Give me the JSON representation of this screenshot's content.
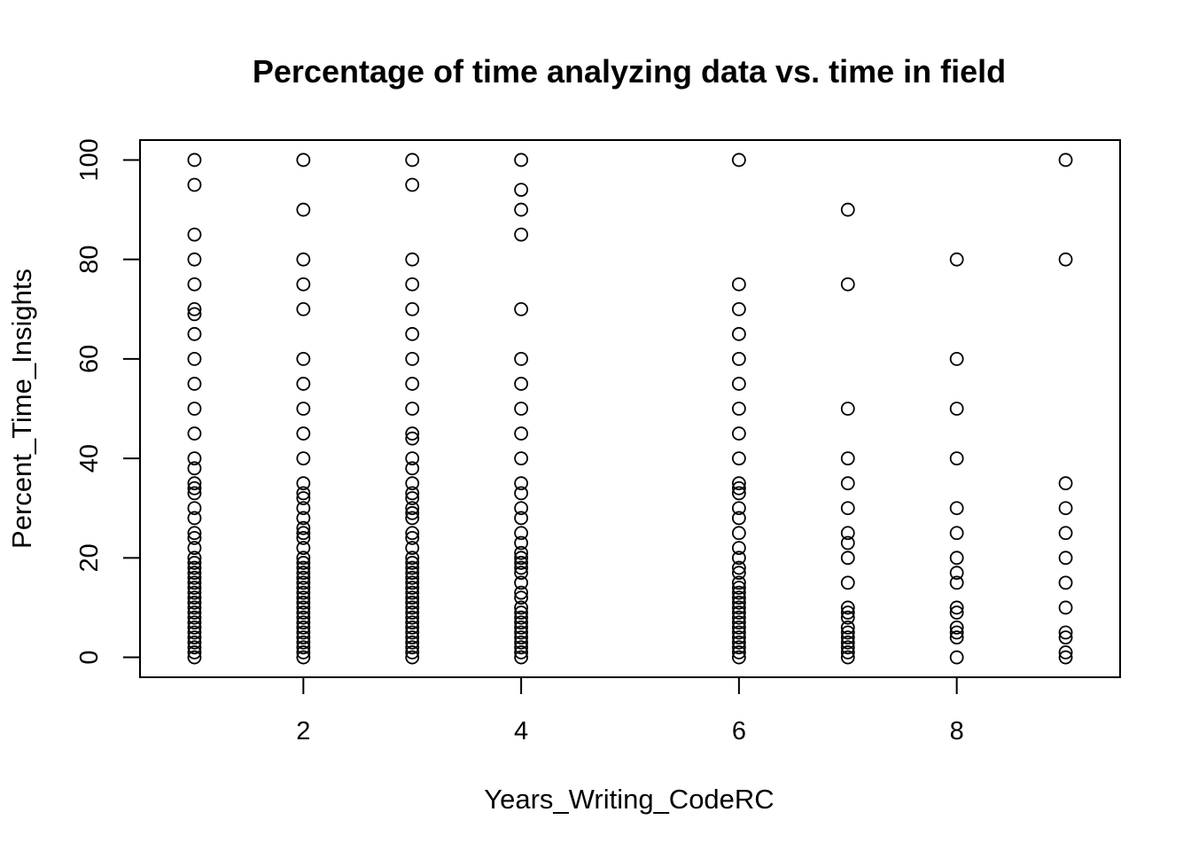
{
  "chart_data": {
    "type": "scatter",
    "title": "Percentage of time analyzing data vs. time in field",
    "xlabel": "Years_Writing_CodeRC",
    "ylabel": "Percent_Time_Insights",
    "xlim": [
      0.5,
      9.5
    ],
    "ylim": [
      -4,
      104
    ],
    "xticks": [
      2,
      4,
      6,
      8
    ],
    "yticks": [
      0,
      20,
      40,
      60,
      80,
      100
    ],
    "grid": false,
    "legend": "none",
    "marker_color": "#000000",
    "points": [
      {
        "x": 1,
        "y": [
          100,
          95,
          85,
          80,
          75,
          70,
          69,
          65,
          60,
          55,
          50,
          45,
          40,
          38,
          35,
          34,
          33,
          30,
          28,
          25,
          24,
          22,
          20,
          19,
          18,
          17,
          16,
          15,
          14,
          13,
          12,
          11,
          10,
          9,
          8,
          7,
          6,
          5,
          4,
          3,
          2,
          1,
          0
        ]
      },
      {
        "x": 2,
        "y": [
          100,
          90,
          80,
          75,
          70,
          60,
          55,
          50,
          45,
          40,
          35,
          33,
          32,
          30,
          28,
          26,
          25,
          24,
          22,
          20,
          19,
          18,
          17,
          16,
          15,
          14,
          13,
          12,
          11,
          10,
          9,
          8,
          7,
          6,
          5,
          4,
          3,
          2,
          1,
          0
        ]
      },
      {
        "x": 3,
        "y": [
          100,
          95,
          80,
          75,
          70,
          65,
          60,
          55,
          50,
          45,
          44,
          40,
          38,
          35,
          33,
          32,
          30,
          29,
          28,
          25,
          24,
          22,
          20,
          19,
          18,
          17,
          16,
          15,
          14,
          13,
          12,
          11,
          10,
          9,
          8,
          7,
          6,
          5,
          4,
          3,
          2,
          1,
          0
        ]
      },
      {
        "x": 4,
        "y": [
          100,
          94,
          90,
          85,
          70,
          60,
          55,
          50,
          45,
          40,
          35,
          33,
          30,
          28,
          25,
          23,
          21,
          20,
          19,
          18,
          17,
          15,
          13,
          12,
          10,
          9,
          8,
          7,
          6,
          5,
          4,
          3,
          2,
          1,
          0
        ]
      },
      {
        "x": 6,
        "y": [
          100,
          75,
          70,
          65,
          60,
          55,
          50,
          45,
          40,
          35,
          34,
          33,
          30,
          28,
          25,
          22,
          20,
          18,
          17,
          15,
          14,
          13,
          12,
          11,
          10,
          9,
          8,
          7,
          6,
          5,
          4,
          3,
          2,
          1,
          0
        ]
      },
      {
        "x": 7,
        "y": [
          90,
          75,
          50,
          40,
          35,
          30,
          25,
          23,
          20,
          15,
          10,
          9,
          8,
          6,
          5,
          4,
          3,
          2,
          1,
          0
        ]
      },
      {
        "x": 8,
        "y": [
          80,
          60,
          50,
          40,
          30,
          25,
          20,
          17,
          15,
          10,
          9,
          6,
          5,
          4,
          0
        ]
      },
      {
        "x": 9,
        "y": [
          100,
          80,
          35,
          30,
          25,
          20,
          15,
          10,
          5,
          4,
          1,
          0
        ]
      }
    ]
  }
}
